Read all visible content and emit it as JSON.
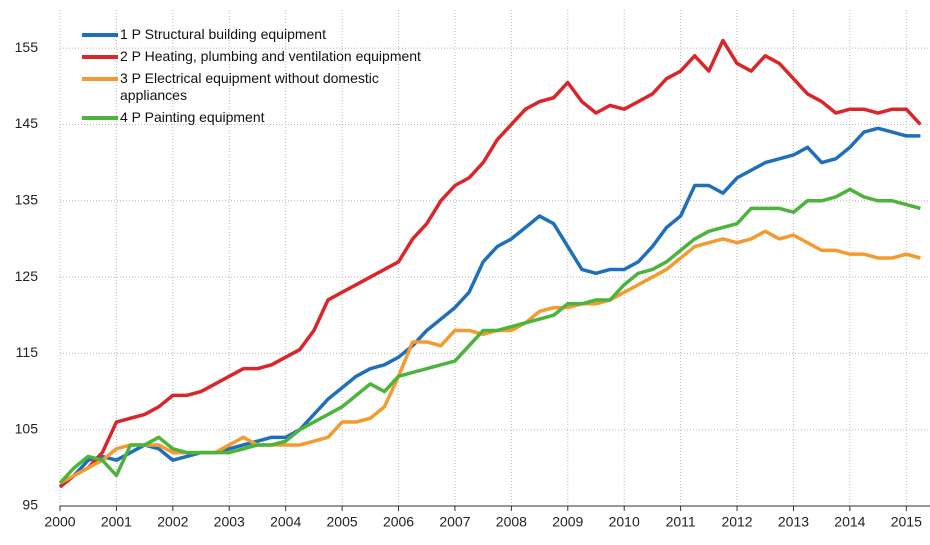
{
  "chart_data": {
    "type": "line",
    "x": [
      2000,
      2000.25,
      2000.5,
      2000.75,
      2001,
      2001.25,
      2001.5,
      2001.75,
      2002,
      2002.25,
      2002.5,
      2002.75,
      2003,
      2003.25,
      2003.5,
      2003.75,
      2004,
      2004.25,
      2004.5,
      2004.75,
      2005,
      2005.25,
      2005.5,
      2005.75,
      2006,
      2006.25,
      2006.5,
      2006.75,
      2007,
      2007.25,
      2007.5,
      2007.75,
      2008,
      2008.25,
      2008.5,
      2008.75,
      2009,
      2009.25,
      2009.5,
      2009.75,
      2010,
      2010.25,
      2010.5,
      2010.75,
      2011,
      2011.25,
      2011.5,
      2011.75,
      2012,
      2012.25,
      2012.5,
      2012.75,
      2013,
      2013.25,
      2013.5,
      2013.75,
      2014,
      2014.25,
      2014.5,
      2014.75,
      2015,
      2015.25
    ],
    "series": [
      {
        "name": "1 P Structural building equipment",
        "color": "#1f6fb9",
        "values": [
          97.5,
          99,
          101,
          101.5,
          101,
          102,
          103,
          102.5,
          101,
          101.5,
          102,
          102,
          102.5,
          103,
          103.5,
          104,
          104,
          105,
          107,
          109,
          110.5,
          112,
          113,
          113.5,
          114.5,
          116,
          118,
          119.5,
          121,
          123,
          127,
          129,
          130,
          131.5,
          133,
          132,
          129,
          126,
          125.5,
          126,
          126,
          127,
          129,
          131.5,
          133,
          137,
          137,
          136,
          138,
          139,
          140,
          140.5,
          141,
          142,
          140,
          140.5,
          142,
          144,
          144.5,
          144,
          143.5,
          143.5
        ]
      },
      {
        "name": "2 P Heating, plumbing and ventilation equipment",
        "color": "#d9262b",
        "values": [
          97.5,
          99,
          100,
          102,
          106,
          106.5,
          107,
          108,
          109.5,
          109.5,
          110,
          111,
          112,
          113,
          113,
          113.5,
          114.5,
          115.5,
          118,
          122,
          123,
          124,
          125,
          126,
          127,
          130,
          132,
          135,
          137,
          138,
          140,
          143,
          145,
          147,
          148,
          148.5,
          150.5,
          148,
          146.5,
          147.5,
          147,
          148,
          149,
          151,
          152,
          154,
          152,
          156,
          153,
          152,
          154,
          153,
          151,
          149,
          148,
          146.5,
          147,
          147,
          146.5,
          147,
          147,
          145
        ]
      },
      {
        "name": "3 P Electrical equipment without domestic appliances",
        "color": "#f39b30",
        "values": [
          98,
          99,
          100,
          101,
          102.5,
          103,
          103,
          103,
          102,
          102,
          102,
          102,
          103,
          104,
          103,
          103,
          103,
          103,
          103.5,
          104,
          106,
          106,
          106.5,
          108,
          112,
          116.5,
          116.5,
          116,
          118,
          118,
          117.5,
          118,
          118,
          119,
          120.5,
          121,
          121,
          121.5,
          121.5,
          122,
          123,
          124,
          125,
          126,
          127.5,
          129,
          129.5,
          130,
          129.5,
          130,
          131,
          130,
          130.5,
          129.5,
          128.5,
          128.5,
          128,
          128,
          127.5,
          127.5,
          128,
          127.5
        ]
      },
      {
        "name": "4 P Painting equipment",
        "color": "#4cb43c",
        "values": [
          98,
          100,
          101.5,
          101,
          99,
          103,
          103,
          104,
          102.5,
          102,
          102,
          102,
          102,
          102.5,
          103,
          103,
          103.5,
          105,
          106,
          107,
          108,
          109.5,
          111,
          110,
          112,
          112.5,
          113,
          113.5,
          114,
          116,
          118,
          118,
          118.5,
          119,
          119.5,
          120,
          121.5,
          121.5,
          122,
          122,
          124,
          125.5,
          126,
          127,
          128.5,
          130,
          131,
          131.5,
          132,
          134,
          134,
          134,
          133.5,
          135,
          135,
          135.5,
          136.5,
          135.5,
          135,
          135,
          134.5,
          134
        ]
      }
    ],
    "xlim": [
      2000,
      2015.42
    ],
    "xticks": [
      2000,
      2001,
      2002,
      2003,
      2004,
      2005,
      2006,
      2007,
      2008,
      2009,
      2010,
      2011,
      2012,
      2013,
      2014,
      2015
    ],
    "ylim": [
      95,
      160
    ],
    "yticks": [
      95,
      105,
      115,
      125,
      135,
      145,
      155
    ],
    "grid": true,
    "legend": "upper left"
  }
}
